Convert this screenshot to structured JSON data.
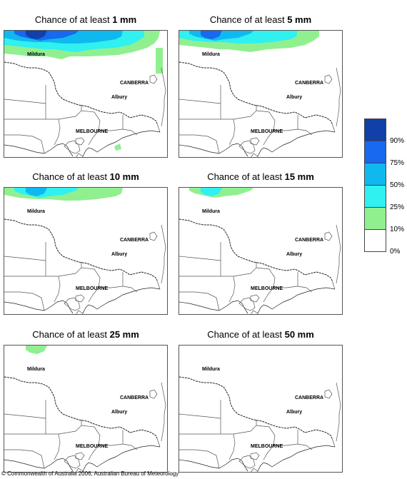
{
  "panels": [
    {
      "prefix": "Chance of at least ",
      "amount": "1 mm",
      "probability_level": 4
    },
    {
      "prefix": "Chance of at least ",
      "amount": "5 mm",
      "probability_level": 3
    },
    {
      "prefix": "Chance of at least ",
      "amount": "10 mm",
      "probability_level": 2
    },
    {
      "prefix": "Chance of at least ",
      "amount": "15 mm",
      "probability_level": 1
    },
    {
      "prefix": "Chance of at least ",
      "amount": "25 mm",
      "probability_level": 0
    },
    {
      "prefix": "Chance of at least ",
      "amount": "50 mm",
      "probability_level": -1
    }
  ],
  "places": {
    "mildura": "Mildura",
    "canberra": "CANBERRA",
    "albury": "Albury",
    "melbourne": "MELBOURNE"
  },
  "legend": {
    "labels": [
      "90%",
      "75%",
      "50%",
      "25%",
      "10%",
      "0%"
    ],
    "colors": [
      "#1040a8",
      "#1868f0",
      "#10b8f0",
      "#30f0f0",
      "#90f090",
      "#ffffff"
    ]
  },
  "copyright": "© Commonwealth of Australia 2006, Australian Bureau of Meteorology"
}
